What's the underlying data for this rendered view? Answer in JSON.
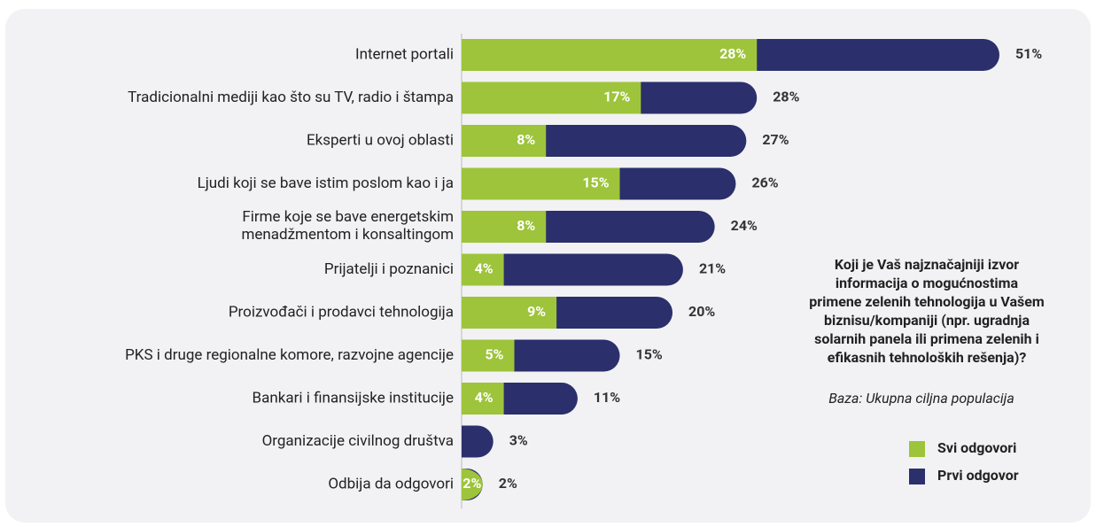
{
  "chart_data": {
    "type": "bar",
    "orientation": "horizontal",
    "overlay": true,
    "categories": [
      "Internet portali",
      "Tradicionalni mediji kao što su TV, radio i štampa",
      "Eksperti u ovoj oblasti",
      "Ljudi koji se bave istim poslom kao i ja",
      "Firme koje se bave energetskim\nmenadžmentom i konsaltingom",
      "Prijatelji i poznanici",
      "Proizvođači i prodavci tehnologija",
      "PKS i druge regionalne komore, razvojne agencije",
      "Bankari i finansijske institucije",
      "Organizacije civilnog društva",
      "Odbija da odgovori"
    ],
    "series": [
      {
        "name": "Prvi odgovor",
        "color": "#2b2f6b",
        "values": [
          51,
          28,
          27,
          26,
          24,
          21,
          20,
          15,
          11,
          3,
          2
        ],
        "value_labels": [
          "51%",
          "28%",
          "27%",
          "26%",
          "24%",
          "21%",
          "20%",
          "15%",
          "11%",
          "3%",
          "2%"
        ]
      },
      {
        "name": "Svi odgovori",
        "color": "#9dc43a",
        "values": [
          28,
          17,
          8,
          15,
          8,
          4,
          9,
          5,
          4,
          null,
          2
        ],
        "value_labels": [
          "28%",
          "17%",
          "8%",
          "15%",
          "8%",
          "4%",
          "9%",
          "5%",
          "4%",
          null,
          "2%"
        ]
      }
    ],
    "xlim": [
      0,
      51
    ],
    "annotation": [
      "Koji je Vaš najznačajniji izvor",
      "informacija o mogućnostima",
      "primene zelenih tehnologija u Vašem",
      "biznisu/kompaniji (npr. ugradnja",
      "solarnih panela ili primena zelenih i",
      "efikasnih tehnoloških rešenja)?"
    ],
    "base": "Baza: Ukupna ciljna populacija",
    "legend_order": [
      1,
      0
    ]
  }
}
